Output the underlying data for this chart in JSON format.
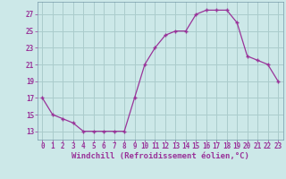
{
  "x": [
    0,
    1,
    2,
    3,
    4,
    5,
    6,
    7,
    8,
    9,
    10,
    11,
    12,
    13,
    14,
    15,
    16,
    17,
    18,
    19,
    20,
    21,
    22,
    23
  ],
  "y": [
    17,
    15,
    14.5,
    14,
    13,
    13,
    13,
    13,
    13,
    17,
    21,
    23,
    24.5,
    25,
    25,
    27,
    27.5,
    27.5,
    27.5,
    26,
    22,
    21.5,
    21,
    19
  ],
  "line_color": "#993399",
  "marker": "+",
  "bg_color": "#cce8e8",
  "grid_color": "#aacccc",
  "xlabel": "Windchill (Refroidissement éolien,°C)",
  "xlabel_fontsize": 6.5,
  "yticks": [
    13,
    15,
    17,
    19,
    21,
    23,
    25,
    27
  ],
  "xticks": [
    0,
    1,
    2,
    3,
    4,
    5,
    6,
    7,
    8,
    9,
    10,
    11,
    12,
    13,
    14,
    15,
    16,
    17,
    18,
    19,
    20,
    21,
    22,
    23
  ],
  "ylim": [
    12.0,
    28.5
  ],
  "xlim": [
    -0.5,
    23.5
  ],
  "tick_color": "#993399",
  "tick_fontsize": 5.5
}
